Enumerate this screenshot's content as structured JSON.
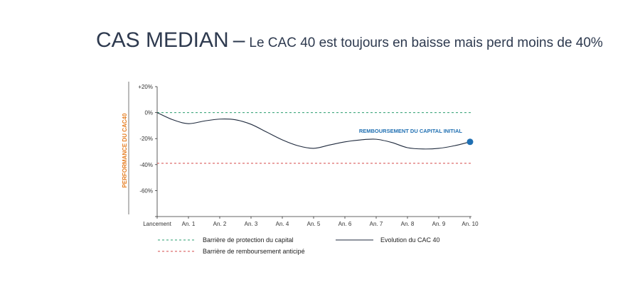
{
  "header": {
    "title": "CAS MEDIAN",
    "separator": "–",
    "subtitle": "Le CAC 40 est toujours en baisse mais perd moins de 40%"
  },
  "chart_data": {
    "type": "line",
    "ylabel": "PERFORMANCE DU CAC40",
    "ylim": [
      -80,
      20
    ],
    "y_ticks": [
      {
        "value": 20,
        "label": "+20%"
      },
      {
        "value": 0,
        "label": "0%"
      },
      {
        "value": -20,
        "label": "-20%"
      },
      {
        "value": -40,
        "label": "-40%"
      },
      {
        "value": -60,
        "label": "-60%"
      },
      {
        "value": -80,
        "label": ""
      }
    ],
    "categories": [
      "Lancement",
      "An. 1",
      "An. 2",
      "An. 3",
      "An. 4",
      "An. 5",
      "An. 6",
      "An. 7",
      "An. 8",
      "An. 9",
      "An. 10"
    ],
    "xlim": [
      0,
      10
    ],
    "series": [
      {
        "name": "Evolution du CAC 40",
        "color": "#1f2a3d",
        "points": [
          [
            0,
            0
          ],
          [
            0.5,
            -5.5
          ],
          [
            1,
            -8.5
          ],
          [
            1.5,
            -6.5
          ],
          [
            2,
            -5
          ],
          [
            2.5,
            -5.5
          ],
          [
            3,
            -9
          ],
          [
            3.5,
            -15
          ],
          [
            4,
            -21
          ],
          [
            4.5,
            -25.5
          ],
          [
            5,
            -27.5
          ],
          [
            5.5,
            -25
          ],
          [
            6,
            -22.5
          ],
          [
            6.5,
            -21
          ],
          [
            7,
            -20.5
          ],
          [
            7.5,
            -23
          ],
          [
            8,
            -27
          ],
          [
            8.5,
            -28
          ],
          [
            9,
            -27.5
          ],
          [
            9.5,
            -25.5
          ],
          [
            10,
            -22.5
          ]
        ]
      }
    ],
    "reference_lines": [
      {
        "name": "Barrière de protection du capital",
        "value": 0,
        "color": "#2a9d6f",
        "style": "dashed"
      },
      {
        "name": "Barrière de remboursement anticipé",
        "value": -39,
        "color": "#d64a4a",
        "style": "dashed"
      }
    ],
    "end_marker": {
      "x": 10,
      "y": -22.5,
      "color": "#1f6fb2"
    },
    "annotation": {
      "text": "REMBOURSEMENT DU CAPITAL INITIAL",
      "x": 8.1,
      "y": -15.5,
      "color": "#1f6fb2"
    },
    "grid": false,
    "legend_placement": "bottom"
  }
}
